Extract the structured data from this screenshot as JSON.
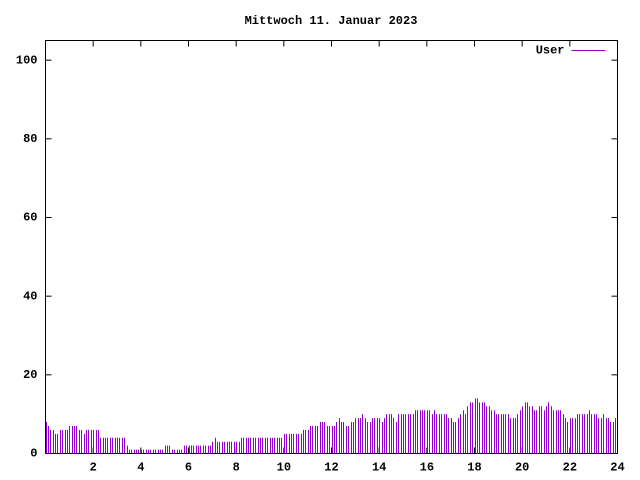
{
  "chart_data": {
    "type": "impulses",
    "title": "Mittwoch 11. Januar 2023",
    "xlim": [
      0,
      24
    ],
    "xticks": [
      2,
      4,
      6,
      8,
      10,
      12,
      14,
      16,
      18,
      20,
      22,
      24
    ],
    "ylim": [
      0,
      105
    ],
    "yticks": [
      0,
      20,
      40,
      60,
      80,
      100
    ],
    "legend": "top-right",
    "x": [
      0,
      0.1,
      0.2,
      0.3,
      0.4,
      0.5,
      0.6,
      0.7,
      0.8,
      0.9,
      1,
      1.1,
      1.2,
      1.3,
      1.4,
      1.5,
      1.6,
      1.7,
      1.8,
      1.9,
      2,
      2.1,
      2.2,
      2.3,
      2.4,
      2.5,
      2.6,
      2.7,
      2.8,
      2.9,
      3,
      3.1,
      3.2,
      3.3,
      3.4,
      3.5,
      3.6,
      3.7,
      3.8,
      3.9,
      4,
      4.1,
      4.2,
      4.3,
      4.4,
      4.5,
      4.6,
      4.7,
      4.8,
      4.9,
      5,
      5.1,
      5.2,
      5.3,
      5.4,
      5.5,
      5.6,
      5.7,
      5.8,
      5.9,
      6,
      6.1,
      6.2,
      6.3,
      6.4,
      6.5,
      6.6,
      6.7,
      6.8,
      6.9,
      7,
      7.1,
      7.2,
      7.3,
      7.4,
      7.5,
      7.6,
      7.7,
      7.8,
      7.9,
      8,
      8.1,
      8.2,
      8.3,
      8.4,
      8.5,
      8.6,
      8.7,
      8.8,
      8.9,
      9,
      9.1,
      9.2,
      9.3,
      9.4,
      9.5,
      9.6,
      9.7,
      9.8,
      9.9,
      10,
      10.1,
      10.2,
      10.3,
      10.4,
      10.5,
      10.6,
      10.7,
      10.8,
      10.9,
      11,
      11.1,
      11.2,
      11.3,
      11.4,
      11.5,
      11.6,
      11.7,
      11.8,
      11.9,
      12,
      12.1,
      12.2,
      12.3,
      12.4,
      12.5,
      12.6,
      12.7,
      12.8,
      12.9,
      13,
      13.1,
      13.2,
      13.3,
      13.4,
      13.5,
      13.6,
      13.7,
      13.8,
      13.9,
      14,
      14.1,
      14.2,
      14.3,
      14.4,
      14.5,
      14.6,
      14.7,
      14.8,
      14.9,
      15,
      15.1,
      15.2,
      15.3,
      15.4,
      15.5,
      15.6,
      15.7,
      15.8,
      15.9,
      16,
      16.1,
      16.2,
      16.3,
      16.4,
      16.5,
      16.6,
      16.7,
      16.8,
      16.9,
      17,
      17.1,
      17.2,
      17.3,
      17.4,
      17.5,
      17.6,
      17.7,
      17.8,
      17.9,
      18,
      18.1,
      18.2,
      18.3,
      18.4,
      18.5,
      18.6,
      18.7,
      18.8,
      18.9,
      19,
      19.1,
      19.2,
      19.3,
      19.4,
      19.5,
      19.6,
      19.7,
      19.8,
      19.9,
      20,
      20.1,
      20.2,
      20.3,
      20.4,
      20.5,
      20.6,
      20.7,
      20.8,
      20.9,
      21,
      21.1,
      21.2,
      21.3,
      21.4,
      21.5,
      21.6,
      21.7,
      21.8,
      21.9,
      22,
      22.1,
      22.2,
      22.3,
      22.4,
      22.5,
      22.6,
      22.7,
      22.8,
      22.9,
      23,
      23.1,
      23.2,
      23.3,
      23.4,
      23.5,
      23.6,
      23.7,
      23.8,
      23.9
    ],
    "series": [
      {
        "name": "User",
        "color": "#9400d3",
        "values": [
          8,
          7,
          6,
          6,
          5,
          5,
          6,
          6,
          6,
          6,
          7,
          7,
          7,
          7,
          6,
          6,
          5,
          6,
          6,
          6,
          6,
          6,
          6,
          4,
          4,
          4,
          4,
          4,
          4,
          4,
          4,
          4,
          4,
          4,
          2,
          1,
          1,
          1,
          1,
          1,
          1,
          1,
          1,
          1,
          1,
          1,
          1,
          1,
          1,
          1,
          2,
          2,
          2,
          1,
          1,
          1,
          1,
          1,
          2,
          2,
          2,
          2,
          2,
          2,
          2,
          2,
          2,
          2,
          2,
          2,
          3,
          4,
          3,
          3,
          3,
          3,
          3,
          3,
          3,
          3,
          3,
          3,
          4,
          4,
          4,
          4,
          4,
          4,
          4,
          4,
          4,
          4,
          4,
          4,
          4,
          4,
          4,
          4,
          4,
          4,
          5,
          5,
          5,
          5,
          5,
          5,
          5,
          5,
          6,
          6,
          6,
          7,
          7,
          7,
          7,
          8,
          8,
          8,
          7,
          7,
          7,
          7,
          8,
          9,
          8,
          8,
          7,
          7,
          8,
          8,
          9,
          9,
          9,
          10,
          9,
          8,
          8,
          9,
          9,
          9,
          9,
          8,
          9,
          10,
          10,
          10,
          9,
          8,
          10,
          10,
          10,
          10,
          10,
          10,
          10,
          11,
          11,
          11,
          11,
          11,
          11,
          11,
          10,
          11,
          10,
          10,
          10,
          10,
          10,
          9,
          9,
          8,
          8,
          9,
          10,
          11,
          10,
          12,
          13,
          13,
          14,
          14,
          13,
          13,
          13,
          12,
          12,
          11,
          11,
          10,
          10,
          10,
          10,
          10,
          10,
          9,
          9,
          9,
          10,
          11,
          12,
          13,
          13,
          12,
          12,
          11,
          11,
          12,
          12,
          11,
          12,
          13,
          12,
          11,
          11,
          11,
          11,
          10,
          9,
          8,
          9,
          9,
          9,
          10,
          10,
          10,
          10,
          10,
          11,
          10,
          10,
          10,
          9,
          9,
          10,
          9,
          9,
          8,
          8,
          9
        ]
      }
    ]
  }
}
